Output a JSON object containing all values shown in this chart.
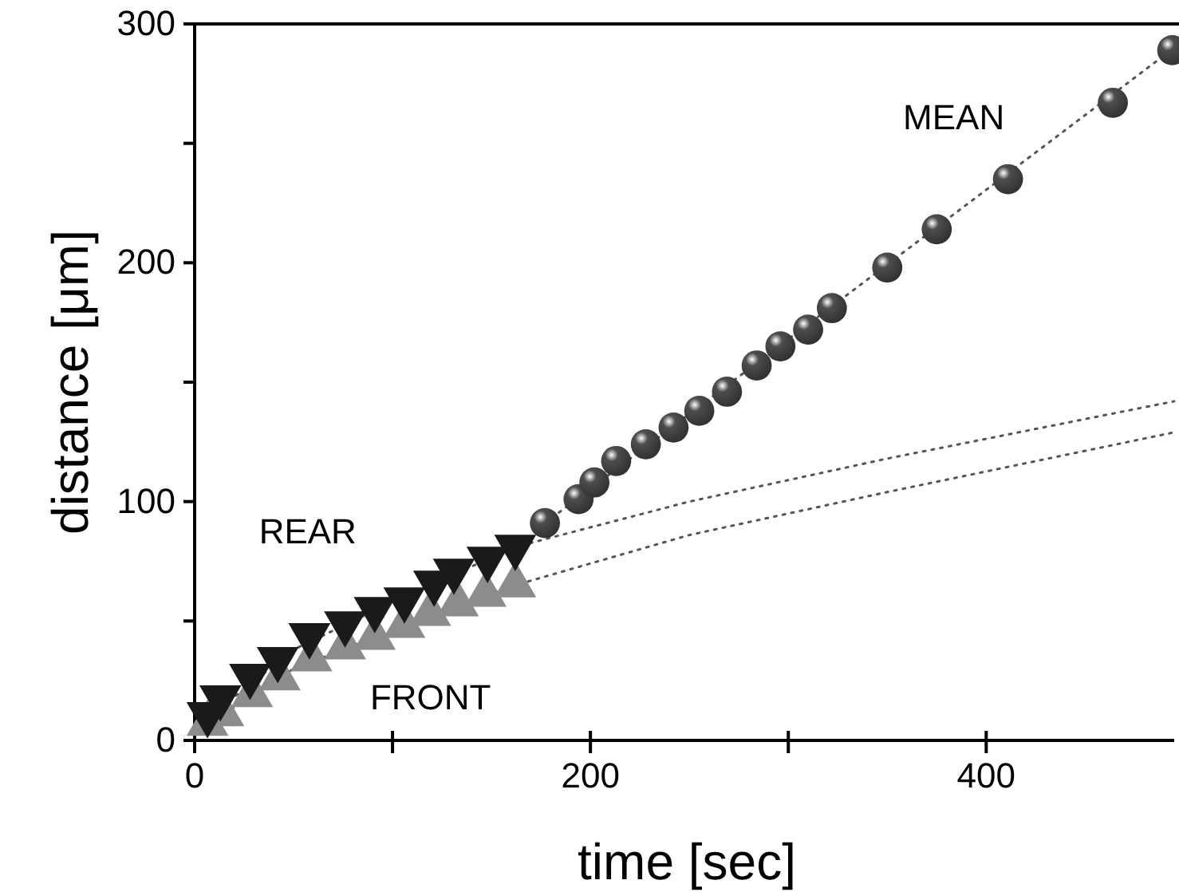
{
  "chart_data": {
    "type": "scatter",
    "xlabel": "time  [sec]",
    "ylabel": "distance  [μm]",
    "xlim": [
      0,
      495
    ],
    "ylim": [
      0,
      300
    ],
    "xticks": [
      0,
      {
        "value": 100,
        "label": null
      },
      200,
      {
        "value": 300,
        "label": null
      },
      400
    ],
    "yticks": [
      0,
      {
        "value": 50,
        "label": null
      },
      100,
      {
        "value": 150,
        "label": null
      },
      200,
      {
        "value": 250,
        "label": null
      },
      300
    ],
    "grid": false,
    "series": [
      {
        "type": "line",
        "color": "#555555",
        "line_style": "dotted",
        "marker": "none",
        "x": [
          0,
          50,
          100,
          162,
          250,
          350,
          495
        ],
        "values": [
          5,
          38,
          58,
          81,
          100,
          118,
          142
        ]
      },
      {
        "type": "line",
        "color": "#555555",
        "line_style": "dotted",
        "marker": "none",
        "x": [
          0,
          50,
          100,
          162,
          250,
          350,
          495
        ],
        "values": [
          3,
          30,
          46,
          65,
          86,
          104,
          129
        ]
      },
      {
        "type": "line",
        "color": "#555555",
        "line_style": "dotted",
        "marker": "none",
        "x": [
          177,
          495
        ],
        "values": [
          91,
          290
        ]
      },
      {
        "name": "FRONT",
        "color": "#8c8c8c",
        "marker": "triangle",
        "x": [
          6.5,
          14.5,
          29,
          43,
          59,
          76,
          91,
          106,
          119,
          133,
          147,
          162
        ],
        "values": [
          7,
          11,
          19,
          26,
          34,
          39,
          43,
          48,
          53,
          57,
          61,
          65
        ]
      },
      {
        "name": "REAR",
        "color": "#1a1a1a",
        "marker": "triangle-down",
        "x": [
          6.5,
          13,
          28,
          42,
          58,
          76,
          91,
          106,
          121,
          131,
          148,
          162
        ],
        "values": [
          11,
          18,
          27,
          34,
          44,
          49,
          55,
          59,
          66,
          71,
          76,
          81
        ]
      },
      {
        "name": "MEAN",
        "color": "#4d4d4d",
        "marker": "circle",
        "x": [
          177,
          194,
          202,
          213,
          228,
          242,
          255,
          269,
          284,
          296,
          310,
          322,
          350,
          375,
          411,
          464,
          494
        ],
        "values": [
          91,
          101,
          108,
          117,
          124,
          131,
          138,
          146,
          157,
          165,
          172,
          181,
          198,
          214,
          235,
          267,
          289
        ]
      }
    ],
    "legend": false
  }
}
